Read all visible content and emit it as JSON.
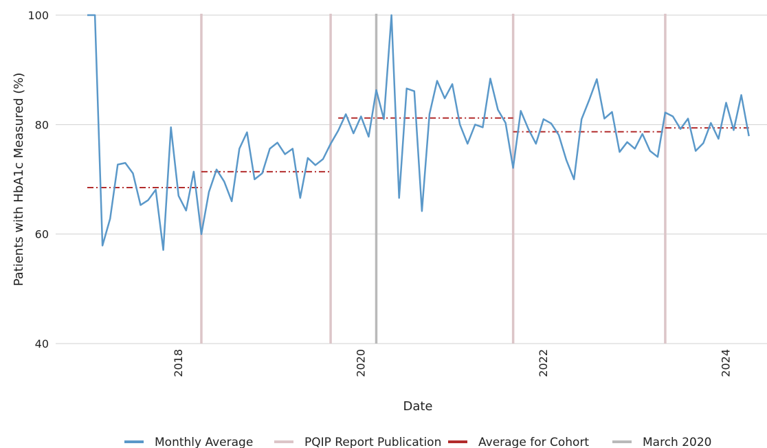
{
  "chart_data": {
    "type": "line",
    "title": "",
    "xlabel": "Date",
    "ylabel": "Patients with HbA1c Measured (%)",
    "ylim": [
      40,
      100
    ],
    "xlim": [
      "2016-12",
      "2024-03"
    ],
    "yticks": [
      40,
      60,
      80,
      100
    ],
    "xticks": [
      "2018",
      "2020",
      "2022",
      "2024"
    ],
    "grid": "horizontal",
    "legend_position": "bottom",
    "series": [
      {
        "name": "Monthly Average",
        "color": "#5a98c9",
        "points": [
          [
            "2017-01",
            100
          ],
          [
            "2017-02",
            100
          ],
          [
            "2017-03",
            57.9
          ],
          [
            "2017-04",
            62.8
          ],
          [
            "2017-05",
            72.7
          ],
          [
            "2017-06",
            73.0
          ],
          [
            "2017-07",
            71.1
          ],
          [
            "2017-08",
            65.3
          ],
          [
            "2017-09",
            66.2
          ],
          [
            "2017-10",
            68.1
          ],
          [
            "2017-11",
            57.1
          ],
          [
            "2017-12",
            79.5
          ],
          [
            "2018-01",
            67.0
          ],
          [
            "2018-02",
            64.3
          ],
          [
            "2018-03",
            71.4
          ],
          [
            "2018-04",
            60.0
          ],
          [
            "2018-05",
            67.7
          ],
          [
            "2018-06",
            71.8
          ],
          [
            "2018-07",
            69.6
          ],
          [
            "2018-08",
            66.0
          ],
          [
            "2018-09",
            75.6
          ],
          [
            "2018-10",
            78.6
          ],
          [
            "2018-11",
            70.0
          ],
          [
            "2018-12",
            71.1
          ],
          [
            "2019-01",
            75.6
          ],
          [
            "2019-02",
            76.7
          ],
          [
            "2019-03",
            74.6
          ],
          [
            "2019-04",
            75.6
          ],
          [
            "2019-05",
            66.6
          ],
          [
            "2019-06",
            73.9
          ],
          [
            "2019-07",
            72.6
          ],
          [
            "2019-08",
            73.7
          ],
          [
            "2019-09",
            76.5
          ],
          [
            "2019-10",
            78.9
          ],
          [
            "2019-11",
            81.9
          ],
          [
            "2019-12",
            78.4
          ],
          [
            "2020-01",
            81.5
          ],
          [
            "2020-02",
            77.8
          ],
          [
            "2020-03",
            86.3
          ],
          [
            "2020-04",
            81.0
          ],
          [
            "2020-05",
            100
          ],
          [
            "2020-06",
            66.6
          ],
          [
            "2020-07",
            86.6
          ],
          [
            "2020-08",
            86.1
          ],
          [
            "2020-09",
            64.2
          ],
          [
            "2020-10",
            81.9
          ],
          [
            "2020-11",
            88.0
          ],
          [
            "2020-12",
            84.8
          ],
          [
            "2021-01",
            87.4
          ],
          [
            "2021-02",
            80.0
          ],
          [
            "2021-03",
            76.5
          ],
          [
            "2021-04",
            80.0
          ],
          [
            "2021-05",
            79.5
          ],
          [
            "2021-06",
            88.4
          ],
          [
            "2021-07",
            82.7
          ],
          [
            "2021-08",
            80.3
          ],
          [
            "2021-09",
            72.1
          ],
          [
            "2021-10",
            82.5
          ],
          [
            "2021-11",
            79.2
          ],
          [
            "2021-12",
            76.5
          ],
          [
            "2022-01",
            81.0
          ],
          [
            "2022-02",
            80.2
          ],
          [
            "2022-03",
            78.1
          ],
          [
            "2022-04",
            73.5
          ],
          [
            "2022-05",
            70.0
          ],
          [
            "2022-06",
            81.0
          ],
          [
            "2022-07",
            84.5
          ],
          [
            "2022-08",
            88.3
          ],
          [
            "2022-09",
            81.1
          ],
          [
            "2022-10",
            82.3
          ],
          [
            "2022-11",
            75.0
          ],
          [
            "2022-12",
            76.8
          ],
          [
            "2023-01",
            75.6
          ],
          [
            "2023-02",
            78.3
          ],
          [
            "2023-03",
            75.2
          ],
          [
            "2023-04",
            74.1
          ],
          [
            "2023-05",
            82.2
          ],
          [
            "2023-06",
            81.5
          ],
          [
            "2023-07",
            79.2
          ],
          [
            "2023-08",
            81.1
          ],
          [
            "2023-09",
            75.2
          ],
          [
            "2023-10",
            76.6
          ],
          [
            "2023-11",
            80.3
          ],
          [
            "2023-12",
            77.4
          ],
          [
            "2024-01",
            84.0
          ],
          [
            "2024-02",
            79.0
          ],
          [
            "2024-03",
            85.4
          ],
          [
            "2024-04",
            77.9
          ]
        ]
      },
      {
        "name": "PQIP Report Publication",
        "color": "#dcc5c8",
        "dates": [
          "2018-04",
          "2019-09",
          "2021-09",
          "2023-05"
        ]
      },
      {
        "name": "Average for Cohort",
        "color": "#b22b2b",
        "segments": [
          {
            "from": "2017-01",
            "to": "2018-04",
            "value": 68.5
          },
          {
            "from": "2018-04",
            "to": "2019-09",
            "value": 71.4
          },
          {
            "from": "2019-10",
            "to": "2021-09",
            "value": 81.2
          },
          {
            "from": "2021-09",
            "to": "2023-05",
            "value": 78.7
          },
          {
            "from": "2023-05",
            "to": "2024-04",
            "value": 79.4
          }
        ]
      },
      {
        "name": "March 2020",
        "color": "#b9b9b9",
        "dates": [
          "2020-03"
        ]
      }
    ]
  }
}
